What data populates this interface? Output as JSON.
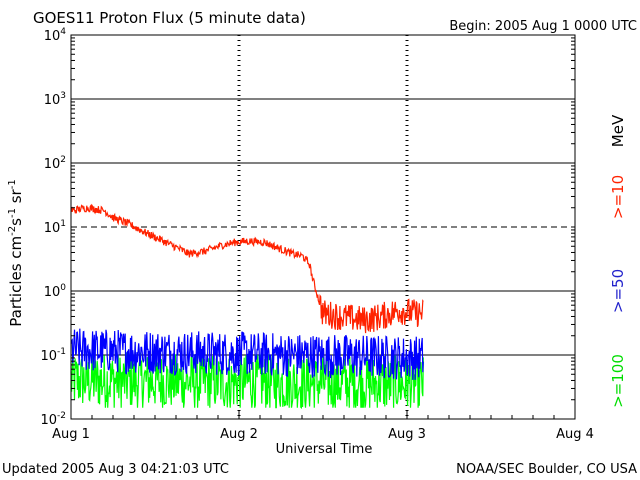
{
  "chart_data": {
    "type": "line",
    "title": "GOES11 Proton Flux (5 minute data)",
    "begin": "Begin: 2005 Aug 1 0000 UTC",
    "xlabel": "Universal Time",
    "ylabel_base": "Particles cm",
    "ylabel_exps": [
      "-2",
      "-1",
      "-1"
    ],
    "ylabel_units": [
      "s",
      "sr"
    ],
    "y_scale": "log",
    "ylim": [
      0.01,
      10000
    ],
    "y_ticks": [
      {
        "base": "10",
        "exp": "4",
        "value": 10000
      },
      {
        "base": "10",
        "exp": "3",
        "value": 1000
      },
      {
        "base": "10",
        "exp": "2",
        "value": 100
      },
      {
        "base": "10",
        "exp": "1",
        "value": 10
      },
      {
        "base": "10",
        "exp": "0",
        "value": 1
      },
      {
        "base": "10",
        "exp": "-1",
        "value": 0.1
      },
      {
        "base": "10",
        "exp": "-2",
        "value": 0.01
      }
    ],
    "xlim_days": [
      0,
      3
    ],
    "x_ticks": [
      {
        "label": "Aug 1",
        "day": 0
      },
      {
        "label": "Aug 2",
        "day": 1
      },
      {
        "label": "Aug 3",
        "day": 2
      },
      {
        "label": "Aug 4",
        "day": 3
      }
    ],
    "dashed_threshold": 10,
    "units": "MeV",
    "series": [
      {
        "name": ">=10",
        "color": "#ff2200",
        "noise": 0.06,
        "points": [
          [
            0.0,
            18
          ],
          [
            0.1,
            20
          ],
          [
            0.2,
            18
          ],
          [
            0.25,
            14
          ],
          [
            0.35,
            11
          ],
          [
            0.45,
            8
          ],
          [
            0.55,
            6
          ],
          [
            0.65,
            4.5
          ],
          [
            0.7,
            3.8
          ],
          [
            0.8,
            4.2
          ],
          [
            0.9,
            5.2
          ],
          [
            0.98,
            5.8
          ],
          [
            1.05,
            6
          ],
          [
            1.15,
            5.8
          ],
          [
            1.25,
            4.5
          ],
          [
            1.32,
            3.8
          ],
          [
            1.38,
            3.5
          ],
          [
            1.42,
            2.6
          ],
          [
            1.44,
            1.5
          ],
          [
            1.47,
            0.8
          ],
          [
            1.5,
            0.45
          ],
          [
            1.6,
            0.4
          ],
          [
            1.75,
            0.35
          ],
          [
            1.85,
            0.4
          ],
          [
            1.95,
            0.5
          ],
          [
            2.05,
            0.45
          ],
          [
            2.1,
            0.45
          ]
        ]
      },
      {
        "name": ">=50",
        "color": "#0000ff",
        "noise": 0.35,
        "points": [
          [
            0.0,
            0.12
          ],
          [
            2.1,
            0.09
          ]
        ]
      },
      {
        "name": ">=100",
        "color": "#00ff00",
        "noise": 0.45,
        "points": [
          [
            0.0,
            0.04
          ],
          [
            2.1,
            0.035
          ]
        ]
      }
    ]
  },
  "footer": {
    "updated": "Updated 2005 Aug  3 04:21:03 UTC",
    "credit": "NOAA/SEC Boulder, CO USA"
  }
}
